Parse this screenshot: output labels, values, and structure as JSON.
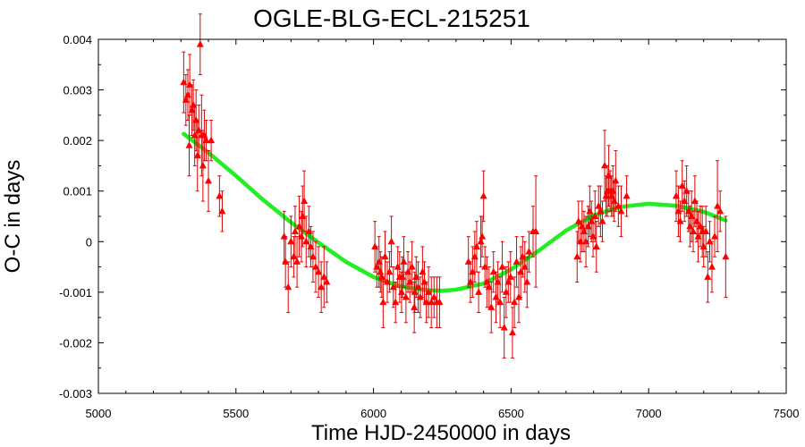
{
  "chart_data": {
    "type": "scatter",
    "title": "OGLE-BLG-ECL-215251",
    "xlabel": "Time HJD-2450000 in days",
    "ylabel": "O-C in days",
    "xlim": [
      5000,
      7500
    ],
    "ylim": [
      -0.003,
      0.004
    ],
    "xticks": [
      5000,
      5500,
      6000,
      6500,
      7000,
      7500
    ],
    "xtick_labels": [
      "5000",
      "5500",
      "6000",
      "6500",
      "7000",
      "7500"
    ],
    "yticks": [
      -0.003,
      -0.002,
      -0.001,
      0,
      0.001,
      0.002,
      0.003,
      0.004
    ],
    "ytick_labels": [
      "-0.003",
      "-0.002",
      "-0.001",
      "0",
      "0.001",
      "0.002",
      "0.003",
      "0.004"
    ],
    "grid": false,
    "series": [
      {
        "marker": "triangle",
        "color": "#ff0000",
        "points": [
          [
            5310,
            0.00315,
            0.0006
          ],
          [
            5318,
            0.0028,
            0.0005
          ],
          [
            5325,
            0.0029,
            0.0005
          ],
          [
            5332,
            0.0031,
            0.0006
          ],
          [
            5340,
            0.0026,
            0.0005
          ],
          [
            5345,
            0.0027,
            0.0005
          ],
          [
            5350,
            0.0021,
            0.0006
          ],
          [
            5355,
            0.0024,
            0.0006
          ],
          [
            5360,
            0.0017,
            0.0007
          ],
          [
            5365,
            0.0022,
            0.0005
          ],
          [
            5370,
            0.0039,
            0.0006
          ],
          [
            5375,
            0.0021,
            0.0008
          ],
          [
            5385,
            0.0021,
            0.0005
          ],
          [
            5392,
            0.002,
            0.0004
          ],
          [
            5400,
            0.0012,
            0.0006
          ],
          [
            5410,
            0.002,
            0.0004
          ],
          [
            5440,
            0.0009,
            0.0004
          ],
          [
            5450,
            0.0006,
            0.0004
          ],
          [
            5330,
            0.0019,
            0.0006
          ],
          [
            5380,
            0.0015,
            0.0007
          ],
          [
            5675,
            0.0001,
            0.0005
          ],
          [
            5680,
            -0.0004,
            0.0005
          ],
          [
            5690,
            -0.0009,
            0.0005
          ],
          [
            5700,
            0.0,
            0.0005
          ],
          [
            5710,
            -0.0003,
            0.0004
          ],
          [
            5715,
            0.0002,
            0.0005
          ],
          [
            5722,
            -0.0004,
            0.0005
          ],
          [
            5730,
            0.0003,
            0.0006
          ],
          [
            5738,
            0.0001,
            0.0005
          ],
          [
            5742,
            0.0005,
            0.0006
          ],
          [
            5748,
            0.0008,
            0.0006
          ],
          [
            5755,
            0.0,
            0.0005
          ],
          [
            5765,
            0.0002,
            0.0005
          ],
          [
            5772,
            -0.0001,
            0.0004
          ],
          [
            5780,
            -0.0003,
            0.0005
          ],
          [
            5790,
            -0.0005,
            0.0005
          ],
          [
            5800,
            -0.0006,
            0.0005
          ],
          [
            5810,
            -0.0009,
            0.0005
          ],
          [
            5820,
            -0.0007,
            0.0006
          ],
          [
            5830,
            -0.0008,
            0.0004
          ],
          [
            6005,
            -0.0001,
            0.0005
          ],
          [
            6012,
            -0.0005,
            0.0004
          ],
          [
            6020,
            -0.0004,
            0.0005
          ],
          [
            6025,
            -0.0006,
            0.0004
          ],
          [
            6030,
            -0.0007,
            0.0004
          ],
          [
            6035,
            -0.0012,
            0.0005
          ],
          [
            6042,
            -0.0003,
            0.0005
          ],
          [
            6050,
            -0.0008,
            0.0004
          ],
          [
            6058,
            -0.0006,
            0.0004
          ],
          [
            6065,
            0.0,
            0.0005
          ],
          [
            6072,
            -0.0009,
            0.0004
          ],
          [
            6080,
            -0.0012,
            0.0004
          ],
          [
            6088,
            -0.0005,
            0.0004
          ],
          [
            6095,
            -0.0007,
            0.0005
          ],
          [
            6102,
            -0.001,
            0.0004
          ],
          [
            6110,
            -0.0004,
            0.0005
          ],
          [
            6118,
            -0.0011,
            0.0005
          ],
          [
            6125,
            -0.0006,
            0.0004
          ],
          [
            6132,
            -0.0008,
            0.0004
          ],
          [
            6140,
            -0.0005,
            0.0005
          ],
          [
            6148,
            -0.0013,
            0.0005
          ],
          [
            6155,
            -0.0007,
            0.0004
          ],
          [
            6162,
            -0.0009,
            0.0005
          ],
          [
            6170,
            -0.0011,
            0.0004
          ],
          [
            6178,
            -0.0006,
            0.0005
          ],
          [
            6185,
            -0.0008,
            0.0004
          ],
          [
            6192,
            -0.0012,
            0.0004
          ],
          [
            6200,
            -0.001,
            0.0005
          ],
          [
            6210,
            -0.0012,
            0.0005
          ],
          [
            6220,
            -0.0011,
            0.0004
          ],
          [
            6230,
            -0.0012,
            0.0005
          ],
          [
            6240,
            -0.0012,
            0.0005
          ],
          [
            6150,
            -0.001,
            0.0004
          ],
          [
            6105,
            -0.0007,
            0.0004
          ],
          [
            6345,
            -0.0004,
            0.0005
          ],
          [
            6352,
            -0.0008,
            0.0004
          ],
          [
            6360,
            -0.0006,
            0.0005
          ],
          [
            6368,
            -0.0003,
            0.0005
          ],
          [
            6375,
            -0.0001,
            0.0005
          ],
          [
            6382,
            -0.001,
            0.0004
          ],
          [
            6390,
            0.0,
            0.0005
          ],
          [
            6395,
            0.0001,
            0.0004
          ],
          [
            6400,
            0.0009,
            0.0005
          ],
          [
            6405,
            -0.0005,
            0.0004
          ],
          [
            6412,
            -0.0008,
            0.0005
          ],
          [
            6420,
            -0.0009,
            0.0004
          ],
          [
            6428,
            -0.0013,
            0.0005
          ],
          [
            6436,
            -0.0006,
            0.0004
          ],
          [
            6445,
            -0.0011,
            0.0005
          ],
          [
            6452,
            -0.0008,
            0.0004
          ],
          [
            6460,
            -0.0012,
            0.0005
          ],
          [
            6468,
            -0.0005,
            0.0005
          ],
          [
            6475,
            -0.0017,
            0.0006
          ],
          [
            6482,
            -0.001,
            0.0005
          ],
          [
            6490,
            -0.0008,
            0.0004
          ],
          [
            6498,
            -0.0007,
            0.0005
          ],
          [
            6505,
            -0.0018,
            0.0005
          ],
          [
            6512,
            -0.0012,
            0.0005
          ],
          [
            6520,
            -0.0004,
            0.0005
          ],
          [
            6528,
            -0.0011,
            0.0005
          ],
          [
            6535,
            -0.0006,
            0.0005
          ],
          [
            6542,
            -0.0003,
            0.0004
          ],
          [
            6550,
            -0.0005,
            0.0005
          ],
          [
            6558,
            -0.0008,
            0.0005
          ],
          [
            6565,
            -0.0002,
            0.0004
          ],
          [
            6580,
            0.0002,
            0.0005
          ],
          [
            6590,
            0.0002,
            0.0011
          ],
          [
            6740,
            -0.0003,
            0.0005
          ],
          [
            6745,
            0.0004,
            0.0004
          ],
          [
            6752,
            0.0,
            0.0004
          ],
          [
            6758,
            0.0003,
            0.0005
          ],
          [
            6765,
            0.0002,
            0.0004
          ],
          [
            6772,
            0.0,
            0.0005
          ],
          [
            6780,
            0.0003,
            0.0004
          ],
          [
            6786,
            0.0006,
            0.0005
          ],
          [
            6792,
            0.0004,
            0.0004
          ],
          [
            6798,
            0.0001,
            0.0004
          ],
          [
            6805,
            0.0005,
            0.0005
          ],
          [
            6810,
            -0.0001,
            0.0005
          ],
          [
            6818,
            0.0007,
            0.0004
          ],
          [
            6825,
            0.0006,
            0.0005
          ],
          [
            6832,
            0.0004,
            0.0004
          ],
          [
            6840,
            0.0015,
            0.0007
          ],
          [
            6845,
            0.0009,
            0.0004
          ],
          [
            6850,
            0.001,
            0.0005
          ],
          [
            6855,
            0.0013,
            0.0006
          ],
          [
            6860,
            0.001,
            0.0004
          ],
          [
            6865,
            0.0009,
            0.0004
          ],
          [
            6870,
            0.001,
            0.0005
          ],
          [
            6875,
            0.0008,
            0.0004
          ],
          [
            6880,
            0.0012,
            0.0006
          ],
          [
            6890,
            0.0007,
            0.0004
          ],
          [
            6900,
            0.0006,
            0.0005
          ],
          [
            6920,
            0.0009,
            0.0004
          ],
          [
            7100,
            0.0009,
            0.0005
          ],
          [
            7108,
            0.0006,
            0.0005
          ],
          [
            7115,
            0.0004,
            0.0004
          ],
          [
            7122,
            0.0011,
            0.0005
          ],
          [
            7130,
            0.0008,
            0.0004
          ],
          [
            7138,
            0.001,
            0.0005
          ],
          [
            7145,
            0.0006,
            0.0004
          ],
          [
            7150,
            0.0003,
            0.0004
          ],
          [
            7156,
            0.0005,
            0.0005
          ],
          [
            7162,
            0.0002,
            0.0004
          ],
          [
            7168,
            0.0008,
            0.0005
          ],
          [
            7175,
            0.0004,
            0.0004
          ],
          [
            7180,
            0.0001,
            0.0005
          ],
          [
            7188,
            0.0003,
            0.0004
          ],
          [
            7195,
            0.0002,
            0.0005
          ],
          [
            7200,
            -0.0001,
            0.0004
          ],
          [
            7208,
            0.0002,
            0.0005
          ],
          [
            7215,
            -0.0007,
            0.0005
          ],
          [
            7222,
            0.0,
            0.0004
          ],
          [
            7230,
            -0.0005,
            0.0005
          ],
          [
            7240,
            0.0001,
            0.0004
          ],
          [
            7250,
            0.0007,
            0.0009
          ],
          [
            7260,
            0.0006,
            0.0004
          ],
          [
            7280,
            -0.0003,
            0.0008
          ]
        ]
      },
      {
        "type": "line",
        "color": "#22ee22",
        "x": [
          5310,
          5400,
          5500,
          5600,
          5700,
          5800,
          5900,
          6000,
          6100,
          6200,
          6250,
          6300,
          6400,
          6500,
          6600,
          6700,
          6800,
          6900,
          7000,
          7100,
          7200,
          7280
        ],
        "y": [
          0.00213,
          0.00176,
          0.0013,
          0.00082,
          0.00038,
          -2e-05,
          -0.0004,
          -0.0007,
          -0.00089,
          -0.00096,
          -0.00097,
          -0.00095,
          -0.00083,
          -0.00055,
          -0.00018,
          0.00022,
          0.00052,
          0.00069,
          0.00075,
          0.00071,
          0.00059,
          0.00042
        ]
      }
    ]
  }
}
